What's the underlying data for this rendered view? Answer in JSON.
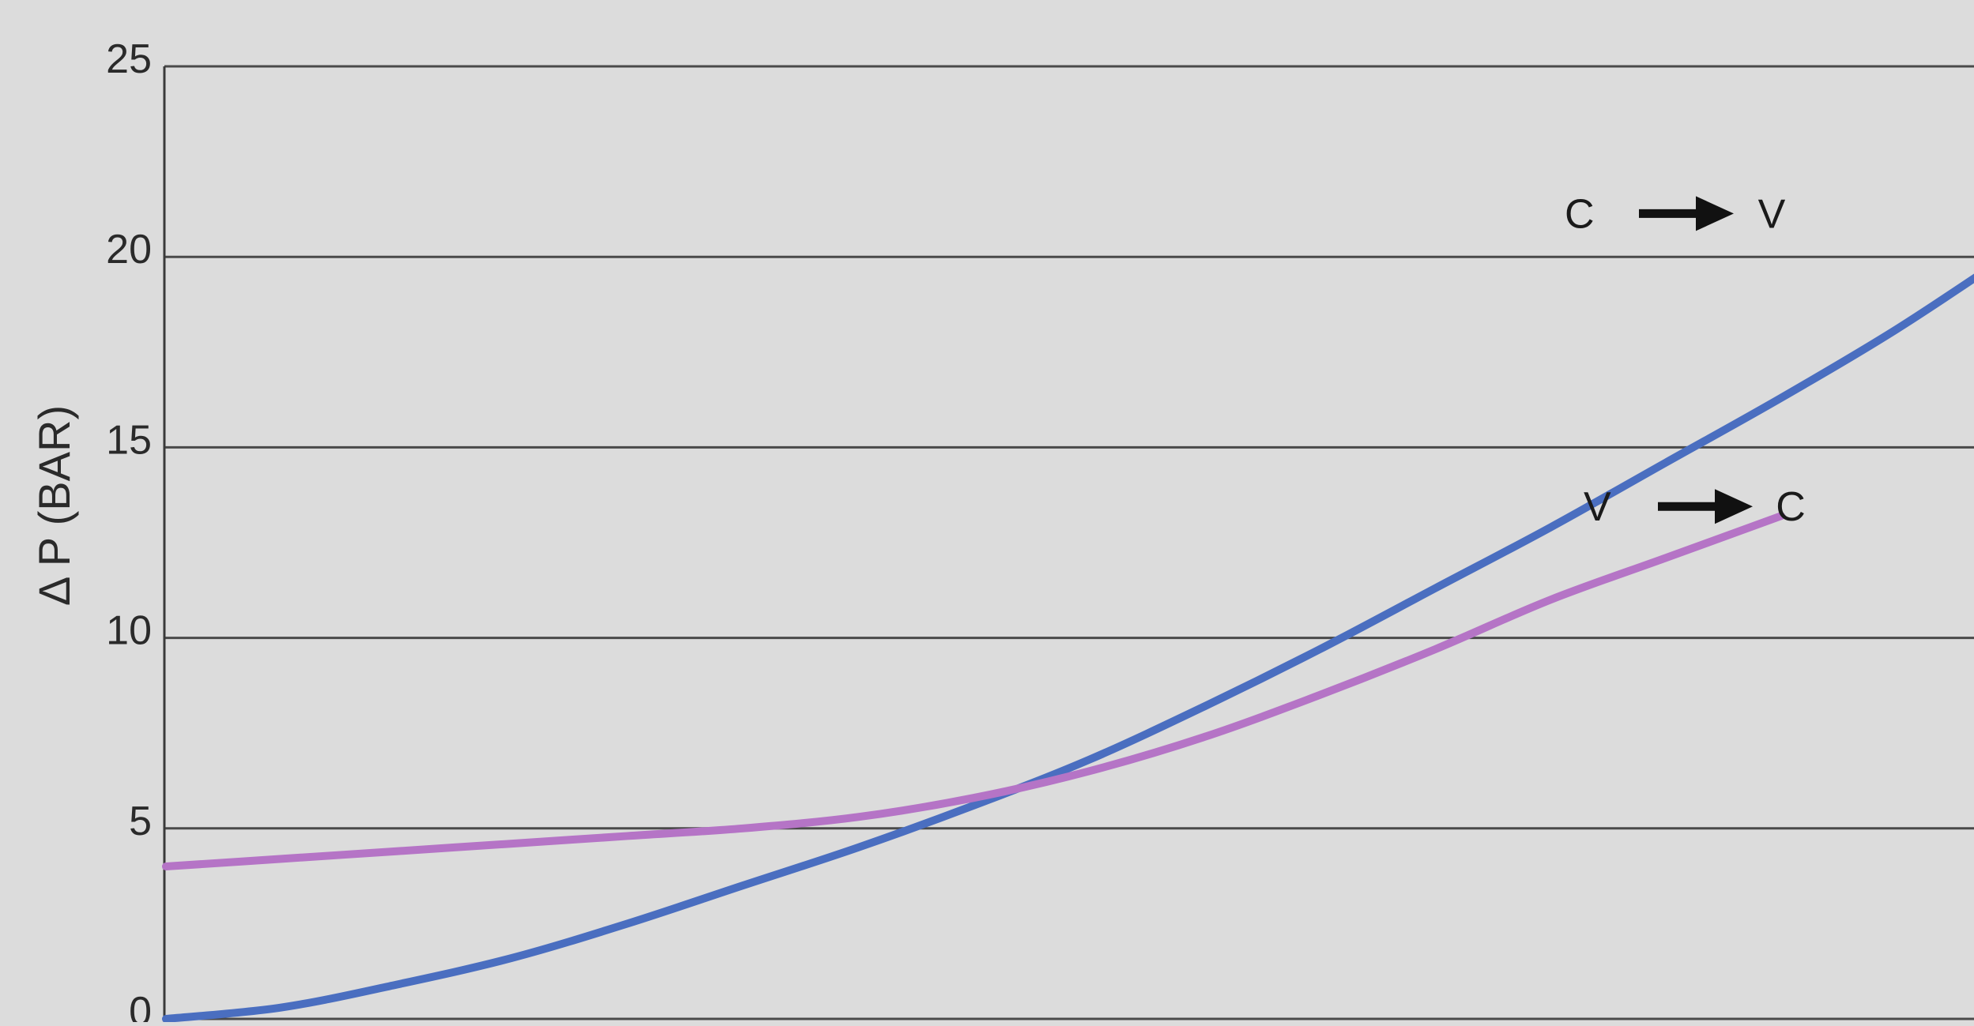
{
  "chart_data": {
    "type": "line",
    "ylabel": "Δ P (BAR)",
    "ylim": [
      0,
      25
    ],
    "yticks": [
      "0",
      "5",
      "10",
      "15",
      "20",
      "25"
    ],
    "grid": true,
    "series": [
      {
        "name": "C → V",
        "label_left": "C",
        "label_right": "V",
        "color": "#4a6ec0",
        "values": [
          0,
          0.3,
          0.9,
          1.6,
          2.5,
          3.5,
          4.5,
          5.6,
          6.8,
          8.2,
          9.7,
          11.3,
          12.9,
          14.6,
          16.3,
          18.1,
          20.1
        ]
      },
      {
        "name": "V → C",
        "label_left": "V",
        "label_right": "C",
        "color": "#b574c6",
        "values": [
          4.0,
          4.2,
          4.4,
          4.6,
          4.8,
          5.0,
          5.3,
          5.8,
          6.5,
          7.4,
          8.5,
          9.7,
          11.0,
          12.1,
          13.2
        ]
      }
    ]
  }
}
